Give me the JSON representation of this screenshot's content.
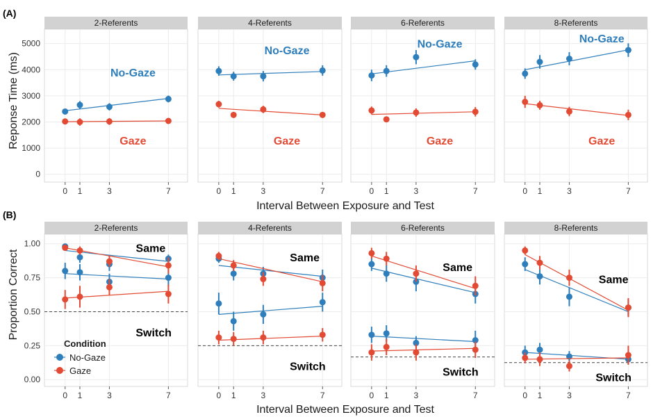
{
  "colors": {
    "no_gaze": "#2e7ebb",
    "gaze": "#e34a33",
    "strip_bg": "#d2d2d2",
    "grid": "#ebebeb",
    "panel_border": "#cfcfcf",
    "chance_line": "#444444"
  },
  "legend": {
    "title": "Condition",
    "items": [
      "No-Gaze",
      "Gaze"
    ]
  },
  "chart_data": [
    {
      "label": "(A)",
      "type": "line",
      "xlabel": "Interval Between Exposure and Test",
      "ylabel": "Reponse Time (ms)",
      "xticks": [
        0,
        1,
        3,
        7
      ],
      "xlim": [
        -1.4,
        8.3
      ],
      "yticks": [
        0,
        1000,
        2000,
        3000,
        4000,
        5000
      ],
      "ytick_labels": [
        "0",
        "1000",
        "2000",
        "3000",
        "4000",
        "5000"
      ],
      "ylim": [
        -300,
        5550
      ],
      "grid": true,
      "facets": [
        {
          "title": "2-Referents",
          "series": [
            {
              "name": "No-Gaze",
              "x": [
                0,
                1,
                3,
                7
              ],
              "y": [
                2400,
                2650,
                2580,
                2880
              ],
              "err": [
                100,
                150,
                140,
                130
              ],
              "fit": [
                2430,
                2900
              ]
            },
            {
              "name": "Gaze",
              "x": [
                0,
                1,
                3,
                7
              ],
              "y": [
                2020,
                2000,
                2020,
                2040
              ],
              "err": [
                110,
                140,
                130,
                110
              ],
              "fit": [
                2010,
                2040
              ]
            }
          ],
          "annotations": [
            {
              "text": "No-Gaze",
              "series": "No-Gaze",
              "x": 4.6,
              "y": 3900
            },
            {
              "text": "Gaze",
              "series": "Gaze",
              "x": 4.6,
              "y": 1300
            }
          ]
        },
        {
          "title": "4-Referents",
          "series": [
            {
              "name": "No-Gaze",
              "x": [
                0,
                1,
                3,
                7
              ],
              "y": [
                3950,
                3750,
                3750,
                3970
              ],
              "err": [
                180,
                170,
                200,
                200
              ],
              "fit": [
                3800,
                3930
              ]
            },
            {
              "name": "Gaze",
              "x": [
                0,
                1,
                3,
                7
              ],
              "y": [
                2680,
                2270,
                2480,
                2270
              ],
              "err": [
                130,
                60,
                140,
                110
              ],
              "fit": [
                2520,
                2270
              ]
            }
          ],
          "annotations": [
            {
              "text": "No-Gaze",
              "series": "No-Gaze",
              "x": 4.6,
              "y": 4750
            },
            {
              "text": "Gaze",
              "series": "Gaze",
              "x": 4.6,
              "y": 1300
            }
          ]
        },
        {
          "title": "6-Referents",
          "series": [
            {
              "name": "No-Gaze",
              "x": [
                0,
                1,
                3,
                7
              ],
              "y": [
                3780,
                3950,
                4480,
                4200
              ],
              "err": [
                220,
                220,
                270,
                200
              ],
              "fit": [
                3840,
                4340
              ]
            },
            {
              "name": "Gaze",
              "x": [
                0,
                1,
                3,
                7
              ],
              "y": [
                2440,
                2100,
                2360,
                2390
              ],
              "err": [
                150,
                110,
                160,
                180
              ],
              "fit": [
                2290,
                2390
              ]
            }
          ],
          "annotations": [
            {
              "text": "No-Gaze",
              "series": "No-Gaze",
              "x": 4.6,
              "y": 5000
            },
            {
              "text": "Gaze",
              "series": "Gaze",
              "x": 4.6,
              "y": 1300
            }
          ]
        },
        {
          "title": "8-Referents",
          "series": [
            {
              "name": "No-Gaze",
              "x": [
                0,
                1,
                3,
                7
              ],
              "y": [
                3850,
                4300,
                4420,
                4750
              ],
              "err": [
                200,
                260,
                250,
                260
              ],
              "fit": [
                4000,
                4760
              ]
            },
            {
              "name": "Gaze",
              "x": [
                0,
                1,
                3,
                7
              ],
              "y": [
                2770,
                2640,
                2400,
                2270
              ],
              "err": [
                230,
                170,
                180,
                200
              ],
              "fit": [
                2700,
                2250
              ]
            }
          ],
          "annotations": [
            {
              "text": "No-Gaze",
              "series": "No-Gaze",
              "x": 5.2,
              "y": 5200
            },
            {
              "text": "Gaze",
              "series": "Gaze",
              "x": 5.2,
              "y": 1300
            }
          ]
        }
      ]
    },
    {
      "label": "(B)",
      "type": "line",
      "xlabel": "Interval Between Exposure and Test",
      "ylabel": "Proportion Correct",
      "xticks": [
        0,
        1,
        3,
        7
      ],
      "xlim": [
        -1.4,
        8.3
      ],
      "yticks": [
        0,
        0.25,
        0.5,
        0.75,
        1.0
      ],
      "ytick_labels": [
        "0.00",
        "0.25",
        "0.50",
        "0.75",
        "1.00"
      ],
      "ylim": [
        -0.05,
        1.07
      ],
      "grid": true,
      "facets": [
        {
          "title": "2-Referents",
          "chance": 0.5,
          "series": [
            {
              "name": "No-Gaze",
              "x": [
                0,
                1,
                3,
                7
              ],
              "y": [
                0.8,
                0.79,
                0.72,
                0.75
              ],
              "err": [
                0.06,
                0.06,
                0.06,
                0.06
              ],
              "fit": [
                0.78,
                0.74
              ]
            },
            {
              "name": "Gaze",
              "x": [
                0,
                1,
                3,
                7
              ],
              "y": [
                0.59,
                0.61,
                0.68,
                0.63
              ],
              "err": [
                0.07,
                0.08,
                0.06,
                0.07
              ],
              "fit": [
                0.6,
                0.65
              ]
            },
            {
              "name": "No-Gaze",
              "x": [
                0,
                1,
                3,
                7
              ],
              "y": [
                0.98,
                0.9,
                0.85,
                0.89
              ],
              "err": [
                0.02,
                0.04,
                0.05,
                0.03
              ],
              "fit": [
                0.95,
                0.87
              ]
            },
            {
              "name": "Gaze",
              "x": [
                0,
                1,
                3,
                7
              ],
              "y": [
                0.97,
                0.95,
                0.87,
                0.84
              ],
              "err": [
                0.02,
                0.03,
                0.04,
                0.06
              ],
              "fit": [
                0.97,
                0.83
              ]
            }
          ],
          "annotations": [
            {
              "text": "Same",
              "series": "",
              "x": 5.8,
              "y": 0.97
            },
            {
              "text": "Switch",
              "series": "",
              "x": 6.0,
              "y": 0.35
            }
          ]
        },
        {
          "title": "4-Referents",
          "chance": 0.25,
          "series": [
            {
              "name": "No-Gaze",
              "x": [
                0,
                1,
                3,
                7
              ],
              "y": [
                0.89,
                0.78,
                0.78,
                0.75
              ],
              "err": [
                0.03,
                0.05,
                0.05,
                0.06
              ],
              "fit": [
                0.84,
                0.76
              ]
            },
            {
              "name": "Gaze",
              "x": [
                0,
                1,
                3,
                7
              ],
              "y": [
                0.91,
                0.84,
                0.74,
                0.71
              ],
              "err": [
                0.03,
                0.04,
                0.05,
                0.06
              ],
              "fit": [
                0.89,
                0.72
              ]
            },
            {
              "name": "No-Gaze",
              "x": [
                0,
                1,
                3,
                7
              ],
              "y": [
                0.56,
                0.43,
                0.48,
                0.57
              ],
              "err": [
                0.08,
                0.07,
                0.07,
                0.07
              ],
              "fit": [
                0.48,
                0.54
              ]
            },
            {
              "name": "Gaze",
              "x": [
                0,
                1,
                3,
                7
              ],
              "y": [
                0.31,
                0.3,
                0.31,
                0.33
              ],
              "err": [
                0.05,
                0.05,
                0.05,
                0.05
              ],
              "fit": [
                0.29,
                0.32
              ]
            }
          ],
          "annotations": [
            {
              "text": "Same",
              "series": "",
              "x": 5.8,
              "y": 0.9
            },
            {
              "text": "Switch",
              "series": "",
              "x": 6.0,
              "y": 0.1
            }
          ]
        },
        {
          "title": "6-Referents",
          "chance": 0.167,
          "series": [
            {
              "name": "No-Gaze",
              "x": [
                0,
                1,
                3,
                7
              ],
              "y": [
                0.85,
                0.78,
                0.72,
                0.63
              ],
              "err": [
                0.05,
                0.06,
                0.07,
                0.07
              ],
              "fit": [
                0.82,
                0.64
              ]
            },
            {
              "name": "Gaze",
              "x": [
                0,
                1,
                3,
                7
              ],
              "y": [
                0.93,
                0.89,
                0.78,
                0.69
              ],
              "err": [
                0.04,
                0.05,
                0.06,
                0.07
              ],
              "fit": [
                0.91,
                0.67
              ]
            },
            {
              "name": "No-Gaze",
              "x": [
                0,
                1,
                3,
                7
              ],
              "y": [
                0.33,
                0.34,
                0.27,
                0.29
              ],
              "err": [
                0.06,
                0.06,
                0.05,
                0.07
              ],
              "fit": [
                0.32,
                0.28
              ]
            },
            {
              "name": "Gaze",
              "x": [
                0,
                1,
                3,
                7
              ],
              "y": [
                0.2,
                0.24,
                0.2,
                0.22
              ],
              "err": [
                0.06,
                0.06,
                0.06,
                0.06
              ],
              "fit": [
                0.21,
                0.23
              ]
            }
          ],
          "annotations": [
            {
              "text": "Same",
              "series": "",
              "x": 5.8,
              "y": 0.83
            },
            {
              "text": "Switch",
              "series": "",
              "x": 6.0,
              "y": 0.06
            }
          ]
        },
        {
          "title": "8-Referents",
          "chance": 0.125,
          "series": [
            {
              "name": "No-Gaze",
              "x": [
                0,
                1,
                3,
                7
              ],
              "y": [
                0.85,
                0.76,
                0.61,
                0.53
              ],
              "err": [
                0.05,
                0.06,
                0.07,
                0.06
              ],
              "fit": [
                0.81,
                0.5
              ]
            },
            {
              "name": "Gaze",
              "x": [
                0,
                1,
                3,
                7
              ],
              "y": [
                0.95,
                0.86,
                0.75,
                0.53
              ],
              "err": [
                0.03,
                0.05,
                0.06,
                0.07
              ],
              "fit": [
                0.92,
                0.51
              ]
            },
            {
              "name": "No-Gaze",
              "x": [
                0,
                1,
                3,
                7
              ],
              "y": [
                0.2,
                0.22,
                0.17,
                0.15
              ],
              "err": [
                0.05,
                0.05,
                0.04,
                0.04
              ],
              "fit": [
                0.2,
                0.15
              ]
            },
            {
              "name": "Gaze",
              "x": [
                0,
                1,
                3,
                7
              ],
              "y": [
                0.16,
                0.15,
                0.1,
                0.18
              ],
              "err": [
                0.04,
                0.05,
                0.04,
                0.07
              ],
              "fit": [
                0.15,
                0.16
              ]
            }
          ],
          "annotations": [
            {
              "text": "Same",
              "series": "",
              "x": 6.0,
              "y": 0.74
            },
            {
              "text": "Switch",
              "series": "",
              "x": 6.0,
              "y": 0.02
            }
          ]
        }
      ]
    }
  ]
}
